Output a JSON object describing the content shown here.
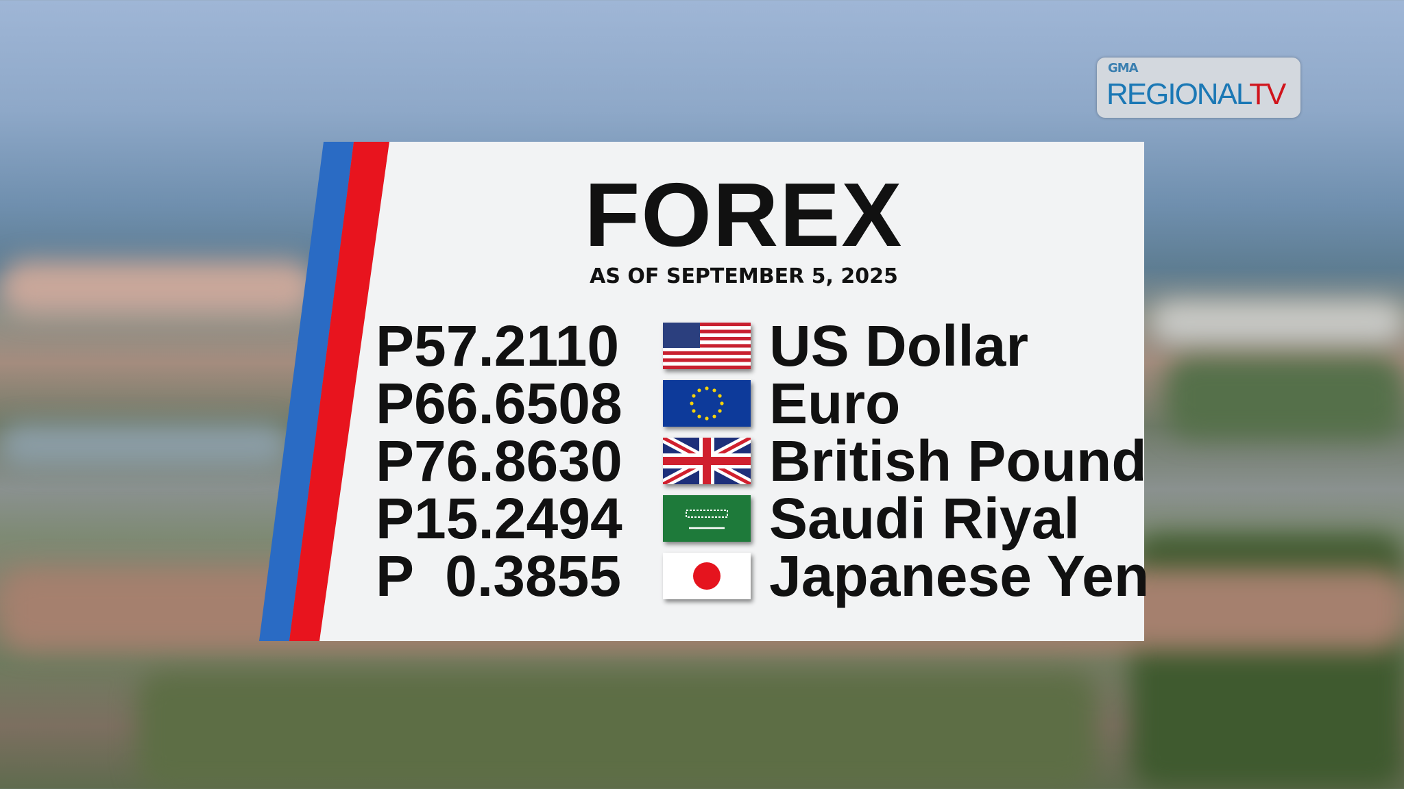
{
  "logo": {
    "network": "GMA",
    "brand_main": "REGIONAL",
    "brand_accent": "TV"
  },
  "card": {
    "title": "FOREX",
    "subtitle": "AS OF SEPTEMBER 5, 2025",
    "colors": {
      "stripe_blue": "#2a6bc4",
      "stripe_red": "#e8141e",
      "panel": "#f2f3f4"
    },
    "rates": [
      {
        "price": "P57.2110",
        "flag": "us-flag-icon",
        "currency": "US Dollar"
      },
      {
        "price": "P66.6508",
        "flag": "eu-flag-icon",
        "currency": "Euro"
      },
      {
        "price": "P76.8630",
        "flag": "uk-flag-icon",
        "currency": "British Pound"
      },
      {
        "price": "P15.2494",
        "flag": "saudi-flag-icon",
        "currency": "Saudi Riyal"
      },
      {
        "price": "P  0.3855",
        "flag": "japan-flag-icon",
        "currency": "Japanese Yen"
      }
    ]
  }
}
